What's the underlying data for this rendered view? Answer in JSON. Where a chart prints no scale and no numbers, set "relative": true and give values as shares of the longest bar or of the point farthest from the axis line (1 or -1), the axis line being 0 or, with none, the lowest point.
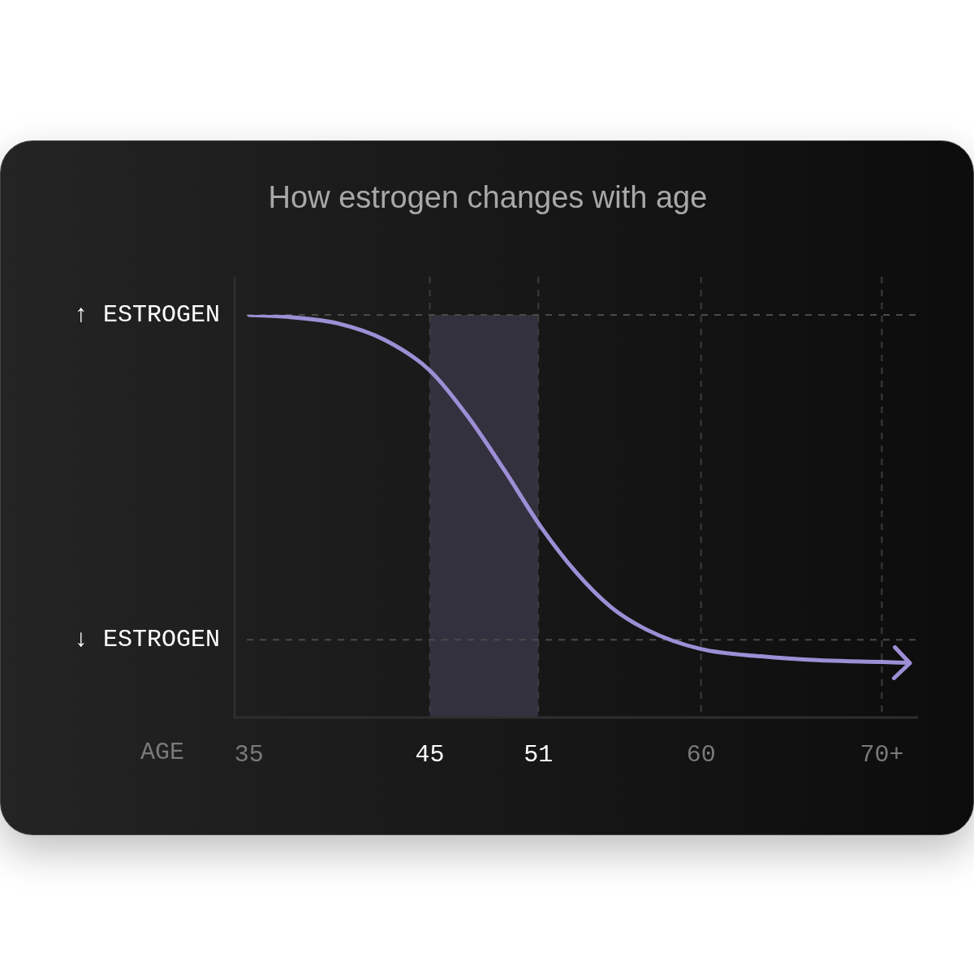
{
  "chart_data": {
    "type": "line",
    "title": "How estrogen changes with age",
    "xlabel": "AGE",
    "relative": true,
    "x": [
      35,
      37.4,
      39.9,
      42.5,
      45,
      47.1,
      49.1,
      51.15,
      53.1,
      55,
      57,
      60,
      63.3,
      66.6,
      70,
      71.5
    ],
    "series": [
      {
        "color": "#9d8fd6",
        "values": [
          1,
          0.994,
          0.979,
          0.938,
          0.862,
          0.748,
          0.616,
          0.473,
          0.36,
          0.275,
          0.218,
          0.17,
          0.152,
          0.142,
          0.138,
          0.136
        ]
      }
    ],
    "xlim": [
      34.2,
      72
    ],
    "xticks": [
      35,
      45,
      51,
      60,
      {
        "value": 70,
        "label": "70+"
      }
    ],
    "ref_lines": [
      {
        "axis": "y",
        "value": 1,
        "label": "↑ ESTROGEN",
        "line_style": "dashed"
      },
      {
        "axis": "y",
        "value": 0.193,
        "label": "↓ ESTROGEN",
        "line_style": "dashed"
      }
    ],
    "bands": [
      {
        "axis": "x",
        "from": 45,
        "to": 51,
        "color": "#34313f"
      }
    ],
    "grid": "x",
    "legend": false,
    "marker": "none",
    "line_style": "solid"
  }
}
